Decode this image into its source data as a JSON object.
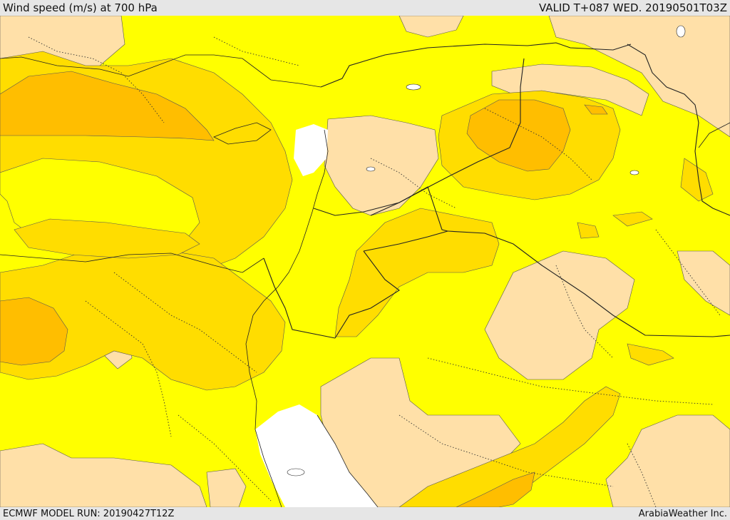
{
  "header": {
    "title": "Wind speed (m/s) at 700 hPa",
    "valid": "VALID T+087 WED. 20190501T03Z"
  },
  "footer": {
    "model_run": "ECMWF MODEL RUN: 20190427T12Z",
    "credit": "ArabiaWeather Inc."
  },
  "map": {
    "field": "wind speed at 700 hPa",
    "colors": {
      "lowest": "#ffffff",
      "low": "#ffe0a8",
      "mid": "#ffff00",
      "high": "#ffdd00",
      "higher": "#ffbe00"
    }
  }
}
